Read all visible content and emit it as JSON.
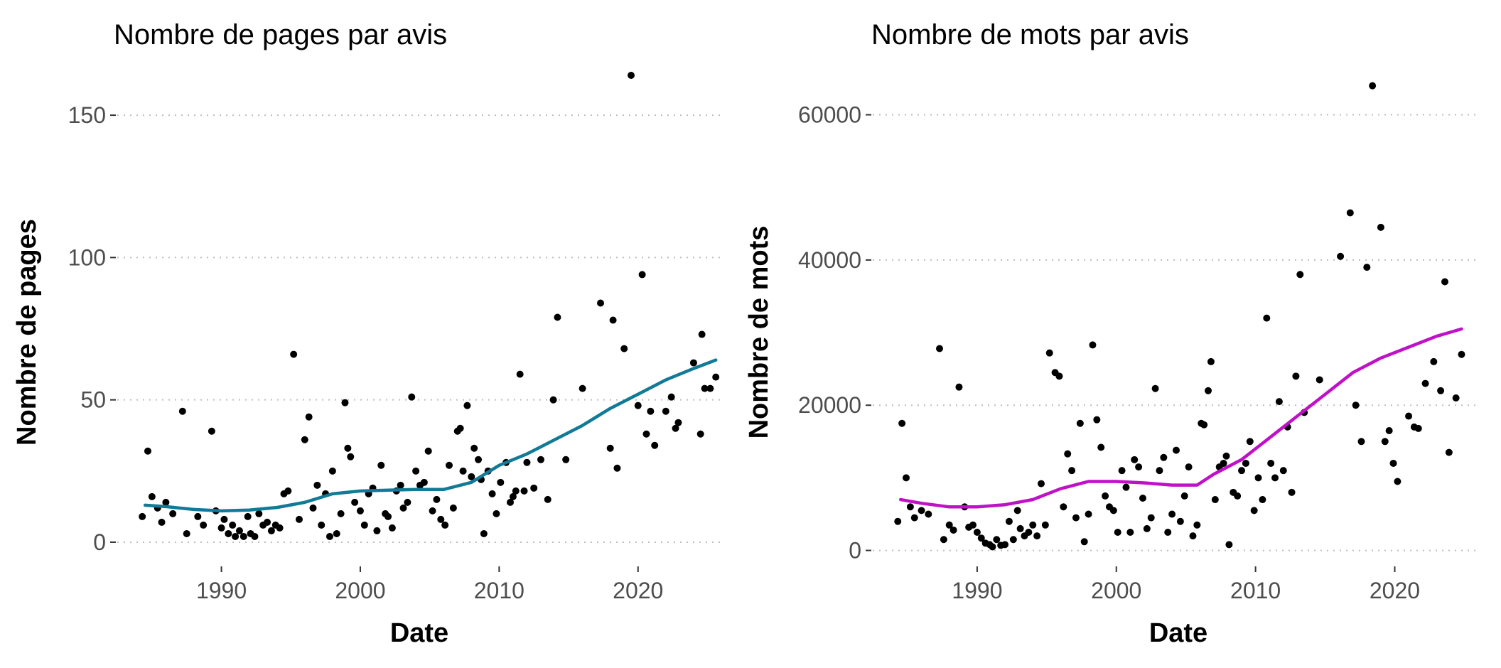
{
  "chart_data": [
    {
      "type": "scatter",
      "title": "Nombre de pages par avis",
      "xlabel": "Date",
      "ylabel": "Nombre de pages",
      "xlim": [
        1982.5,
        2026
      ],
      "ylim": [
        -8,
        168
      ],
      "x_ticks": [
        1990,
        2000,
        2010,
        2020
      ],
      "y_ticks": [
        0,
        50,
        100,
        150
      ],
      "grid": "horizontal dotted",
      "trend_color": "#117a96",
      "points": [
        [
          1984.3,
          9
        ],
        [
          1984.7,
          32
        ],
        [
          1985.0,
          16
        ],
        [
          1985.4,
          12
        ],
        [
          1985.7,
          7
        ],
        [
          1986.0,
          14
        ],
        [
          1986.5,
          10
        ],
        [
          1987.2,
          46
        ],
        [
          1987.5,
          3
        ],
        [
          1988.3,
          9
        ],
        [
          1988.7,
          6
        ],
        [
          1989.3,
          39
        ],
        [
          1989.6,
          11
        ],
        [
          1990.0,
          5
        ],
        [
          1990.2,
          8
        ],
        [
          1990.5,
          3
        ],
        [
          1990.8,
          6
        ],
        [
          1991.0,
          2
        ],
        [
          1991.3,
          4
        ],
        [
          1991.6,
          2
        ],
        [
          1991.9,
          9
        ],
        [
          1992.1,
          3
        ],
        [
          1992.4,
          2
        ],
        [
          1992.7,
          10
        ],
        [
          1993.0,
          6
        ],
        [
          1993.3,
          7
        ],
        [
          1993.6,
          4
        ],
        [
          1993.9,
          6
        ],
        [
          1994.2,
          5
        ],
        [
          1994.5,
          17
        ],
        [
          1994.8,
          18
        ],
        [
          1995.2,
          66
        ],
        [
          1995.6,
          8
        ],
        [
          1996.0,
          36
        ],
        [
          1996.3,
          44
        ],
        [
          1996.6,
          12
        ],
        [
          1996.9,
          20
        ],
        [
          1997.2,
          6
        ],
        [
          1997.5,
          17
        ],
        [
          1997.8,
          2
        ],
        [
          1998.0,
          25
        ],
        [
          1998.3,
          3
        ],
        [
          1998.6,
          10
        ],
        [
          1998.9,
          49
        ],
        [
          1999.1,
          33
        ],
        [
          1999.3,
          30
        ],
        [
          1999.6,
          14
        ],
        [
          2000.0,
          11
        ],
        [
          2000.3,
          6
        ],
        [
          2000.6,
          17
        ],
        [
          2000.9,
          19
        ],
        [
          2001.2,
          4
        ],
        [
          2001.5,
          27
        ],
        [
          2001.8,
          10
        ],
        [
          2002.0,
          9
        ],
        [
          2002.3,
          5
        ],
        [
          2002.6,
          18
        ],
        [
          2002.9,
          20
        ],
        [
          2003.1,
          12
        ],
        [
          2003.4,
          14
        ],
        [
          2003.7,
          51
        ],
        [
          2004.0,
          25
        ],
        [
          2004.3,
          20
        ],
        [
          2004.6,
          21
        ],
        [
          2004.9,
          32
        ],
        [
          2005.2,
          11
        ],
        [
          2005.5,
          15
        ],
        [
          2005.8,
          8
        ],
        [
          2006.1,
          6
        ],
        [
          2006.4,
          27
        ],
        [
          2006.7,
          12
        ],
        [
          2007.0,
          39
        ],
        [
          2007.2,
          40
        ],
        [
          2007.4,
          25
        ],
        [
          2007.7,
          48
        ],
        [
          2008.0,
          23
        ],
        [
          2008.2,
          33
        ],
        [
          2008.5,
          29
        ],
        [
          2008.7,
          22
        ],
        [
          2008.9,
          3
        ],
        [
          2009.2,
          25
        ],
        [
          2009.5,
          17
        ],
        [
          2009.8,
          10
        ],
        [
          2010.1,
          21
        ],
        [
          2010.5,
          28
        ],
        [
          2010.8,
          14
        ],
        [
          2011.0,
          16
        ],
        [
          2011.2,
          18
        ],
        [
          2011.5,
          59
        ],
        [
          2011.8,
          18
        ],
        [
          2012.0,
          28
        ],
        [
          2012.5,
          19
        ],
        [
          2013.0,
          29
        ],
        [
          2013.5,
          15
        ],
        [
          2013.9,
          50
        ],
        [
          2014.2,
          79
        ],
        [
          2014.8,
          29
        ],
        [
          2016.0,
          54
        ],
        [
          2017.3,
          84
        ],
        [
          2018.0,
          33
        ],
        [
          2018.2,
          78
        ],
        [
          2018.5,
          26
        ],
        [
          2019.0,
          68
        ],
        [
          2019.5,
          164
        ],
        [
          2020.0,
          48
        ],
        [
          2020.3,
          94
        ],
        [
          2020.6,
          38
        ],
        [
          2020.9,
          46
        ],
        [
          2021.2,
          34
        ],
        [
          2022.0,
          46
        ],
        [
          2022.4,
          51
        ],
        [
          2022.7,
          40
        ],
        [
          2022.9,
          42
        ],
        [
          2024.0,
          63
        ],
        [
          2024.5,
          38
        ],
        [
          2024.6,
          73
        ],
        [
          2024.8,
          54
        ],
        [
          2025.2,
          54
        ],
        [
          2025.6,
          58
        ]
      ],
      "trend": [
        [
          1984.5,
          13
        ],
        [
          1986,
          12.5
        ],
        [
          1988,
          11.5
        ],
        [
          1990,
          11
        ],
        [
          1992,
          11.3
        ],
        [
          1994,
          12.2
        ],
        [
          1996,
          14
        ],
        [
          1998,
          17
        ],
        [
          2000,
          18
        ],
        [
          2002,
          18.3
        ],
        [
          2004,
          18.5
        ],
        [
          2006,
          18.5
        ],
        [
          2008,
          21
        ],
        [
          2010,
          27
        ],
        [
          2012,
          31
        ],
        [
          2014,
          36
        ],
        [
          2016,
          41
        ],
        [
          2018,
          47
        ],
        [
          2020,
          52
        ],
        [
          2022,
          57
        ],
        [
          2024,
          61
        ],
        [
          2025.6,
          64
        ]
      ]
    },
    {
      "type": "scatter",
      "title": "Nombre de mots par avis",
      "xlabel": "Date",
      "ylabel": "Nombre de mots",
      "xlim": [
        1982.5,
        2026
      ],
      "ylim": [
        -2000,
        67000
      ],
      "x_ticks": [
        1990,
        2000,
        2010,
        2020
      ],
      "y_ticks": [
        0,
        20000,
        40000,
        60000
      ],
      "grid": "horizontal dotted",
      "trend_color": "#c010c8",
      "points": [
        [
          1984.3,
          4000
        ],
        [
          1984.6,
          17500
        ],
        [
          1984.9,
          10000
        ],
        [
          1985.2,
          6000
        ],
        [
          1985.5,
          4500
        ],
        [
          1986.0,
          5500
        ],
        [
          1986.5,
          5000
        ],
        [
          1987.3,
          27800
        ],
        [
          1987.6,
          1500
        ],
        [
          1988.0,
          3500
        ],
        [
          1988.3,
          2800
        ],
        [
          1988.7,
          22500
        ],
        [
          1989.1,
          6000
        ],
        [
          1989.4,
          3200
        ],
        [
          1989.7,
          3500
        ],
        [
          1990.0,
          2500
        ],
        [
          1990.3,
          1700
        ],
        [
          1990.6,
          1000
        ],
        [
          1990.9,
          800
        ],
        [
          1991.1,
          500
        ],
        [
          1991.4,
          1500
        ],
        [
          1991.7,
          700
        ],
        [
          1992.0,
          800
        ],
        [
          1992.3,
          4000
        ],
        [
          1992.6,
          1500
        ],
        [
          1992.9,
          5500
        ],
        [
          1993.1,
          3000
        ],
        [
          1993.4,
          2000
        ],
        [
          1993.7,
          2500
        ],
        [
          1994.0,
          3500
        ],
        [
          1994.3,
          2000
        ],
        [
          1994.6,
          9200
        ],
        [
          1994.9,
          3500
        ],
        [
          1995.2,
          27200
        ],
        [
          1995.6,
          24500
        ],
        [
          1995.9,
          24000
        ],
        [
          1996.2,
          6000
        ],
        [
          1996.5,
          13300
        ],
        [
          1996.8,
          11000
        ],
        [
          1997.1,
          4500
        ],
        [
          1997.4,
          17500
        ],
        [
          1997.7,
          1200
        ],
        [
          1998.0,
          5000
        ],
        [
          1998.3,
          28300
        ],
        [
          1998.6,
          18000
        ],
        [
          1998.9,
          14200
        ],
        [
          1999.2,
          7500
        ],
        [
          1999.5,
          6000
        ],
        [
          1999.8,
          5500
        ],
        [
          2000.1,
          2500
        ],
        [
          2000.4,
          11000
        ],
        [
          2000.7,
          8700
        ],
        [
          2001.0,
          2500
        ],
        [
          2001.3,
          12500
        ],
        [
          2001.6,
          11500
        ],
        [
          2001.9,
          7200
        ],
        [
          2002.2,
          3000
        ],
        [
          2002.5,
          4500
        ],
        [
          2002.8,
          22300
        ],
        [
          2003.1,
          11000
        ],
        [
          2003.4,
          12800
        ],
        [
          2003.7,
          2500
        ],
        [
          2004.0,
          5000
        ],
        [
          2004.3,
          13800
        ],
        [
          2004.6,
          4000
        ],
        [
          2004.9,
          7500
        ],
        [
          2005.2,
          11500
        ],
        [
          2005.5,
          2000
        ],
        [
          2005.8,
          3500
        ],
        [
          2006.1,
          17500
        ],
        [
          2006.3,
          17300
        ],
        [
          2006.6,
          22000
        ],
        [
          2006.8,
          26000
        ],
        [
          2007.1,
          7000
        ],
        [
          2007.4,
          11500
        ],
        [
          2007.7,
          12000
        ],
        [
          2007.9,
          13000
        ],
        [
          2008.1,
          800
        ],
        [
          2008.4,
          8000
        ],
        [
          2008.7,
          7500
        ],
        [
          2009.0,
          11000
        ],
        [
          2009.3,
          12000
        ],
        [
          2009.6,
          15000
        ],
        [
          2009.9,
          5500
        ],
        [
          2010.2,
          10000
        ],
        [
          2010.5,
          7000
        ],
        [
          2010.8,
          32000
        ],
        [
          2011.1,
          12000
        ],
        [
          2011.4,
          10000
        ],
        [
          2011.7,
          20500
        ],
        [
          2012.0,
          11000
        ],
        [
          2012.3,
          17000
        ],
        [
          2012.6,
          8000
        ],
        [
          2012.9,
          24000
        ],
        [
          2013.2,
          38000
        ],
        [
          2013.5,
          19000
        ],
        [
          2014.6,
          23500
        ],
        [
          2016.1,
          40500
        ],
        [
          2016.8,
          46500
        ],
        [
          2017.2,
          20000
        ],
        [
          2017.6,
          15000
        ],
        [
          2018.0,
          39000
        ],
        [
          2018.4,
          64000
        ],
        [
          2019.0,
          44500
        ],
        [
          2019.3,
          15000
        ],
        [
          2019.6,
          16500
        ],
        [
          2019.9,
          12000
        ],
        [
          2020.2,
          9500
        ],
        [
          2021.0,
          18500
        ],
        [
          2021.4,
          17000
        ],
        [
          2021.7,
          16800
        ],
        [
          2022.2,
          23000
        ],
        [
          2022.8,
          26000
        ],
        [
          2023.3,
          22000
        ],
        [
          2023.6,
          37000
        ],
        [
          2023.9,
          13500
        ],
        [
          2024.4,
          21000
        ],
        [
          2024.8,
          27000
        ]
      ],
      "trend": [
        [
          1984.5,
          7000
        ],
        [
          1986,
          6500
        ],
        [
          1988,
          6000
        ],
        [
          1990,
          6000
        ],
        [
          1992,
          6300
        ],
        [
          1994,
          7000
        ],
        [
          1996,
          8500
        ],
        [
          1998,
          9500
        ],
        [
          2000,
          9500
        ],
        [
          2002,
          9300
        ],
        [
          2004,
          9000
        ],
        [
          2005.8,
          9000
        ],
        [
          2007,
          10500
        ],
        [
          2009,
          12500
        ],
        [
          2011,
          15500
        ],
        [
          2013,
          18500
        ],
        [
          2015,
          21500
        ],
        [
          2017,
          24500
        ],
        [
          2019,
          26500
        ],
        [
          2021,
          28000
        ],
        [
          2023,
          29500
        ],
        [
          2024.8,
          30500
        ]
      ]
    }
  ]
}
